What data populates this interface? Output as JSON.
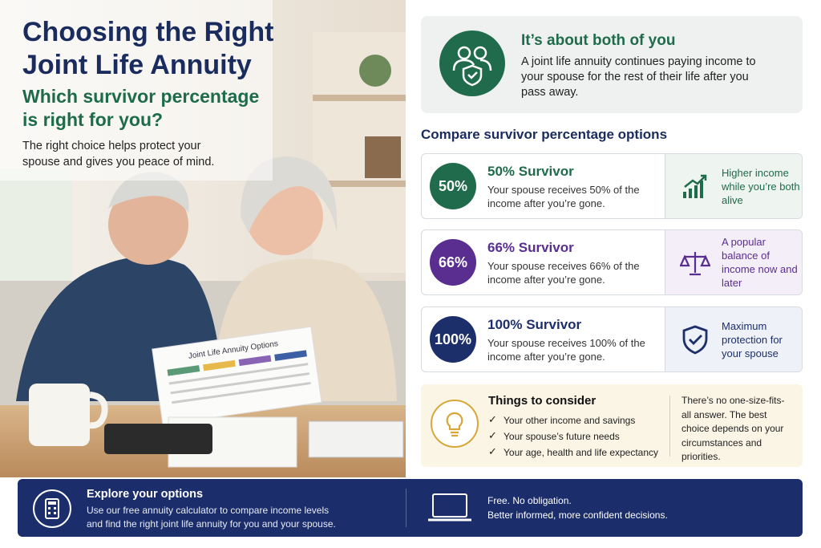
{
  "header": {
    "title": "Choosing the Right Joint Life Annuity",
    "subtitle": "Which survivor percentage is right for you?",
    "intro": "The right choice helps protect your spouse and gives you peace of mind."
  },
  "photo": {
    "sheet_title": "Joint Life Annuity Options"
  },
  "about": {
    "title": "It’s about both of you",
    "text": "A joint life annuity continues paying income to your spouse for the rest of their life after you pass away."
  },
  "compare": {
    "heading": "Compare survivor percentage options",
    "options": [
      {
        "badge": "50%",
        "title": "50% Survivor",
        "text": "Your spouse receives 50% of the income after you’re gone.",
        "note": "Higher income while you’re both alive"
      },
      {
        "badge": "66%",
        "title": "66% Survivor",
        "text": "Your spouse receives 66% of the income after you’re gone.",
        "note": "A popular balance of income now and later"
      },
      {
        "badge": "100%",
        "title": "100% Survivor",
        "text": "Your spouse receives 100% of the income after you’re gone.",
        "note": "Maximum protection for your spouse"
      }
    ]
  },
  "consider": {
    "title": "Things to consider",
    "items": [
      "Your other income and savings",
      "Your spouse’s future needs",
      "Your age, health and life expectancy"
    ],
    "note": "There’s no one-size-fits-all answer. The best choice depends on your circumstances and priorities."
  },
  "footer": {
    "title": "Explore your options",
    "text": "Use our free annuity calculator to compare income levels and find the right joint life annuity for you and your spouse.",
    "line1": "Free. No obligation.",
    "line2": "Better informed, more confident decisions."
  }
}
